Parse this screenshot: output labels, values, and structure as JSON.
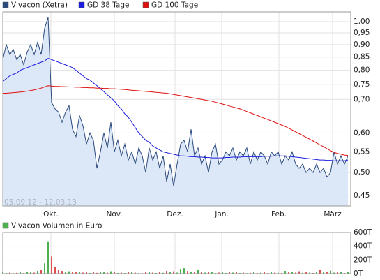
{
  "chart_data": [
    {
      "type": "line",
      "log_y": true,
      "grid": true,
      "date_range": "05.09.12 - 12.03.13",
      "xlim": [
        0,
        99.8
      ],
      "xticks": [
        {
          "value": 13.8,
          "label": "Okt."
        },
        {
          "value": 32,
          "label": "Nov."
        },
        {
          "value": 49.4,
          "label": "Dez."
        },
        {
          "value": 62.8,
          "label": "Jan."
        },
        {
          "value": 79.2,
          "label": "Feb."
        },
        {
          "value": 94.6,
          "label": "März"
        }
      ],
      "ylim": [
        0.429,
        1.046
      ],
      "yticks": [
        {
          "value": 1.0,
          "label": "1,00"
        },
        {
          "value": 0.95,
          "label": "0,95"
        },
        {
          "value": 0.9,
          "label": "0,90"
        },
        {
          "value": 0.85,
          "label": "0,85"
        },
        {
          "value": 0.8,
          "label": "0,80"
        },
        {
          "value": 0.75,
          "label": "0,75"
        },
        {
          "value": 0.7,
          "label": "0,70"
        },
        {
          "value": 0.6,
          "label": "0,60"
        },
        {
          "value": 0.55,
          "label": "0,55"
        },
        {
          "value": 0.5,
          "label": "0,50"
        },
        {
          "value": 0.45,
          "label": "0,45"
        }
      ],
      "series": [
        {
          "name": "Vivacon (Xetra)",
          "color": "#2b4a7e",
          "fill": "#dce7f7",
          "values": [
            0.84,
            0.9,
            0.86,
            0.88,
            0.84,
            0.86,
            0.82,
            0.87,
            0.9,
            0.86,
            0.91,
            0.86,
            0.97,
            1.02,
            0.69,
            0.67,
            0.66,
            0.63,
            0.66,
            0.68,
            0.61,
            0.59,
            0.65,
            0.62,
            0.57,
            0.6,
            0.58,
            0.51,
            0.55,
            0.6,
            0.56,
            0.63,
            0.55,
            0.58,
            0.54,
            0.57,
            0.53,
            0.55,
            0.52,
            0.56,
            0.54,
            0.5,
            0.56,
            0.53,
            0.55,
            0.51,
            0.54,
            0.48,
            0.52,
            0.47,
            0.52,
            0.57,
            0.58,
            0.55,
            0.61,
            0.54,
            0.56,
            0.52,
            0.54,
            0.5,
            0.55,
            0.57,
            0.52,
            0.53,
            0.55,
            0.54,
            0.56,
            0.53,
            0.55,
            0.54,
            0.56,
            0.52,
            0.55,
            0.53,
            0.55,
            0.54,
            0.52,
            0.55,
            0.54,
            0.55,
            0.52,
            0.54,
            0.53,
            0.55,
            0.52,
            0.51,
            0.52,
            0.5,
            0.51,
            0.5,
            0.52,
            0.5,
            0.51,
            0.49,
            0.5,
            0.55,
            0.52,
            0.54,
            0.52,
            0.54
          ]
        },
        {
          "name": "GD 38 Tage",
          "color": "#1c1ce0",
          "values": [
            0.76,
            0.77,
            0.78,
            0.785,
            0.79,
            0.8,
            0.805,
            0.81,
            0.815,
            0.82,
            0.825,
            0.83,
            0.835,
            0.845,
            0.84,
            0.835,
            0.83,
            0.825,
            0.82,
            0.815,
            0.81,
            0.8,
            0.79,
            0.78,
            0.77,
            0.765,
            0.755,
            0.745,
            0.735,
            0.725,
            0.715,
            0.705,
            0.695,
            0.68,
            0.67,
            0.655,
            0.645,
            0.63,
            0.615,
            0.6,
            0.59,
            0.58,
            0.575,
            0.565,
            0.56,
            0.555,
            0.55,
            0.548,
            0.546,
            0.544,
            0.542,
            0.54,
            0.54,
            0.539,
            0.538,
            0.538,
            0.537,
            0.537,
            0.536,
            0.536,
            0.535,
            0.535,
            0.535,
            0.535,
            0.536,
            0.536,
            0.537,
            0.537,
            0.537,
            0.538,
            0.538,
            0.538,
            0.538,
            0.538,
            0.538,
            0.539,
            0.539,
            0.539,
            0.54,
            0.54,
            0.54,
            0.54,
            0.539,
            0.538,
            0.537,
            0.536,
            0.535,
            0.534,
            0.533,
            0.532,
            0.531,
            0.53,
            0.53,
            0.529,
            0.529,
            0.528,
            0.528,
            0.528,
            0.528,
            0.53
          ]
        },
        {
          "name": "GD 100 Tage",
          "color": "#e01010",
          "values": [
            0.72,
            0.72,
            0.721,
            0.722,
            0.723,
            0.724,
            0.725,
            0.727,
            0.729,
            0.731,
            0.734,
            0.737,
            0.741,
            0.745,
            0.744,
            0.743,
            0.743,
            0.742,
            0.742,
            0.741,
            0.741,
            0.74,
            0.74,
            0.739,
            0.739,
            0.738,
            0.738,
            0.737,
            0.737,
            0.736,
            0.736,
            0.735,
            0.735,
            0.734,
            0.733,
            0.732,
            0.731,
            0.73,
            0.729,
            0.728,
            0.727,
            0.726,
            0.725,
            0.724,
            0.723,
            0.722,
            0.721,
            0.72,
            0.718,
            0.716,
            0.714,
            0.712,
            0.71,
            0.708,
            0.706,
            0.704,
            0.702,
            0.7,
            0.698,
            0.696,
            0.694,
            0.691,
            0.688,
            0.685,
            0.682,
            0.679,
            0.676,
            0.673,
            0.67,
            0.666,
            0.662,
            0.658,
            0.654,
            0.65,
            0.646,
            0.642,
            0.638,
            0.634,
            0.63,
            0.626,
            0.622,
            0.618,
            0.613,
            0.608,
            0.603,
            0.598,
            0.593,
            0.588,
            0.583,
            0.578,
            0.573,
            0.568,
            0.563,
            0.558,
            0.553,
            0.549,
            0.546,
            0.544,
            0.542,
            0.541
          ]
        }
      ]
    },
    {
      "type": "bar",
      "grid": true,
      "xlim": [
        0,
        99.8
      ],
      "ylim": [
        0,
        600
      ],
      "yticks": [
        {
          "value": 600,
          "label": "600T"
        },
        {
          "value": 400,
          "label": "400T"
        },
        {
          "value": 200,
          "label": "200T"
        },
        {
          "value": 0,
          "label": "0T"
        }
      ],
      "series": [
        {
          "name": "Vivacon Volumen in Euro",
          "color": "#4caf50",
          "down_color": "#e05050",
          "values": [
            20,
            10,
            15,
            8,
            12,
            20,
            10,
            25,
            30,
            15,
            40,
            60,
            150,
            470,
            250,
            100,
            60,
            40,
            30,
            35,
            25,
            20,
            30,
            15,
            20,
            10,
            25,
            12,
            30,
            20,
            15,
            35,
            20,
            10,
            15,
            10,
            25,
            20,
            15,
            10,
            8,
            30,
            20,
            15,
            10,
            25,
            12,
            40,
            20,
            35,
            15,
            70,
            80,
            40,
            30,
            20,
            60,
            25,
            15,
            30,
            20,
            10,
            15,
            20,
            10,
            25,
            15,
            20,
            10,
            15,
            8,
            12,
            20,
            10,
            15,
            25,
            10,
            20,
            15,
            12,
            10,
            40,
            20,
            30,
            15,
            35,
            12,
            20,
            15,
            10,
            25,
            60,
            30,
            20,
            45,
            15,
            20,
            30,
            10,
            25
          ]
        }
      ]
    }
  ]
}
